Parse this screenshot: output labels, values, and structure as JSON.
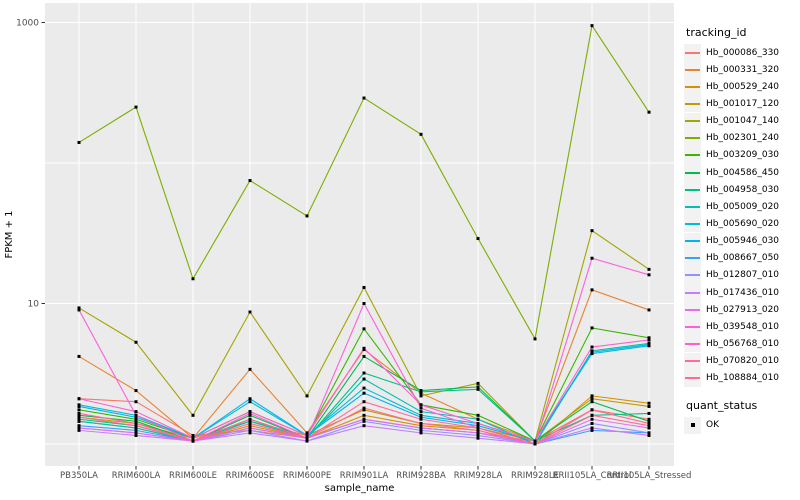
{
  "axes": {
    "x_title": "sample_name",
    "y_title": "FPKM + 1",
    "y_tick_labels": [
      "10",
      "1000"
    ],
    "axis_text_color": "#4D4D4D",
    "tick_color": "#333333"
  },
  "legend": {
    "tracking_title": "tracking_id",
    "quant_title": "quant_status",
    "quant_items": [
      {
        "label": "OK",
        "marker": "black-filled-square"
      }
    ],
    "key_fill": "#F2F2F2"
  },
  "panel": {
    "fill": "#EBEBEB",
    "grid_color": "#FFFFFF"
  },
  "chart_data": {
    "type": "line",
    "title": "",
    "xlabel": "sample_name",
    "ylabel": "FPKM + 1",
    "y_scale": "log10",
    "ylim": [
      1,
      1000
    ],
    "y_major_gridlines": [
      1,
      10,
      100,
      1000
    ],
    "y_labeled_ticks": [
      10,
      1000
    ],
    "legend_position": "right",
    "point_marker": "small black square (quant_status = OK)",
    "categories": [
      "PB350LA",
      "RRIM600LA",
      "RRIM600LE",
      "RRIM600SE",
      "RRIM600PE",
      "RRIM901LA",
      "RRIM928BA",
      "RRIM928LA",
      "RRIM928LE",
      "RRII105LA_Control",
      "RRII105LA_Stressed"
    ],
    "series": [
      {
        "name": "Hb_000086_330",
        "color": "#F8766D",
        "values": [
          2.1,
          2.0,
          1.15,
          1.25,
          1.1,
          1.5,
          1.3,
          1.2,
          1.05,
          1.75,
          1.5
        ]
      },
      {
        "name": "Hb_000331_320",
        "color": "#EA8331",
        "values": [
          4.2,
          2.4,
          1.1,
          3.4,
          1.2,
          4.7,
          2.3,
          1.5,
          1.05,
          12.5,
          9.0
        ]
      },
      {
        "name": "Hb_000529_240",
        "color": "#D89000",
        "values": [
          1.45,
          1.3,
          1.05,
          1.35,
          1.1,
          1.6,
          1.35,
          1.25,
          1.0,
          2.2,
          1.95
        ]
      },
      {
        "name": "Hb_001017_120",
        "color": "#C09B00",
        "values": [
          1.55,
          1.4,
          1.1,
          1.45,
          1.15,
          1.75,
          1.4,
          1.3,
          1.05,
          2.1,
          1.85
        ]
      },
      {
        "name": "Hb_001047_140",
        "color": "#A3A500",
        "values": [
          9.3,
          5.3,
          1.6,
          8.7,
          2.2,
          13.0,
          2.2,
          2.7,
          1.05,
          33,
          17.5
        ]
      },
      {
        "name": "Hb_002301_240",
        "color": "#7CAE00",
        "values": [
          140,
          250,
          15,
          75,
          42,
          290,
          160,
          29,
          5.6,
          950,
          230
        ]
      },
      {
        "name": "Hb_003209_030",
        "color": "#39B600",
        "values": [
          1.75,
          1.5,
          1.1,
          1.7,
          1.15,
          6.6,
          1.9,
          1.6,
          1.05,
          6.7,
          5.7
        ]
      },
      {
        "name": "Hb_004586_450",
        "color": "#00BB4E",
        "values": [
          1.6,
          1.45,
          1.05,
          1.6,
          1.1,
          4.2,
          2.4,
          2.55,
          1.05,
          2.0,
          1.45
        ]
      },
      {
        "name": "Hb_004958_030",
        "color": "#00C087",
        "values": [
          1.5,
          1.35,
          1.05,
          1.5,
          1.1,
          3.2,
          2.35,
          2.45,
          1.05,
          1.6,
          1.65
        ]
      },
      {
        "name": "Hb_005009_020",
        "color": "#00C0B2",
        "values": [
          1.45,
          1.3,
          1.05,
          1.45,
          1.1,
          2.9,
          1.7,
          1.5,
          1.0,
          4.6,
          5.2
        ]
      },
      {
        "name": "Hb_005690_020",
        "color": "#00BDD4",
        "values": [
          1.9,
          1.6,
          1.1,
          2.0,
          1.15,
          2.5,
          1.6,
          1.4,
          1.05,
          4.5,
          5.1
        ]
      },
      {
        "name": "Hb_005946_030",
        "color": "#00B4EF",
        "values": [
          1.85,
          1.55,
          1.1,
          2.1,
          1.15,
          2.3,
          1.55,
          1.35,
          1.05,
          4.4,
          5.0
        ]
      },
      {
        "name": "Hb_008667_050",
        "color": "#35A2FF",
        "values": [
          1.35,
          1.25,
          1.05,
          1.3,
          1.1,
          1.5,
          1.3,
          1.2,
          1.0,
          1.25,
          1.2
        ]
      },
      {
        "name": "Hb_012807_010",
        "color": "#9590FF",
        "values": [
          1.3,
          1.2,
          1.05,
          1.25,
          1.05,
          1.45,
          1.25,
          1.15,
          1.0,
          1.4,
          1.2
        ]
      },
      {
        "name": "Hb_017436_010",
        "color": "#C77CFF",
        "values": [
          1.25,
          1.15,
          1.05,
          1.2,
          1.05,
          1.35,
          1.2,
          1.1,
          1.0,
          1.3,
          1.15
        ]
      },
      {
        "name": "Hb_027913_020",
        "color": "#E76BF3",
        "values": [
          1.3,
          1.2,
          1.05,
          1.3,
          1.1,
          1.5,
          1.3,
          1.2,
          1.0,
          1.5,
          1.3
        ]
      },
      {
        "name": "Hb_039548_010",
        "color": "#FA62DB",
        "values": [
          9.0,
          1.6,
          1.05,
          1.65,
          1.1,
          10.0,
          1.8,
          1.3,
          1.0,
          21,
          16
        ]
      },
      {
        "name": "Hb_056768_010",
        "color": "#FF61CC",
        "values": [
          2.1,
          1.7,
          1.1,
          1.7,
          1.15,
          4.8,
          1.9,
          1.4,
          1.05,
          4.9,
          5.5
        ]
      },
      {
        "name": "Hb_070820_010",
        "color": "#FF6A9A",
        "values": [
          1.65,
          1.4,
          1.05,
          1.5,
          1.1,
          2.0,
          1.5,
          1.3,
          1.0,
          1.75,
          1.4
        ]
      },
      {
        "name": "Hb_108884_010",
        "color": "#FF6C92",
        "values": [
          1.55,
          1.35,
          1.05,
          1.4,
          1.1,
          1.8,
          1.4,
          1.25,
          1.0,
          1.6,
          1.35
        ]
      }
    ]
  }
}
